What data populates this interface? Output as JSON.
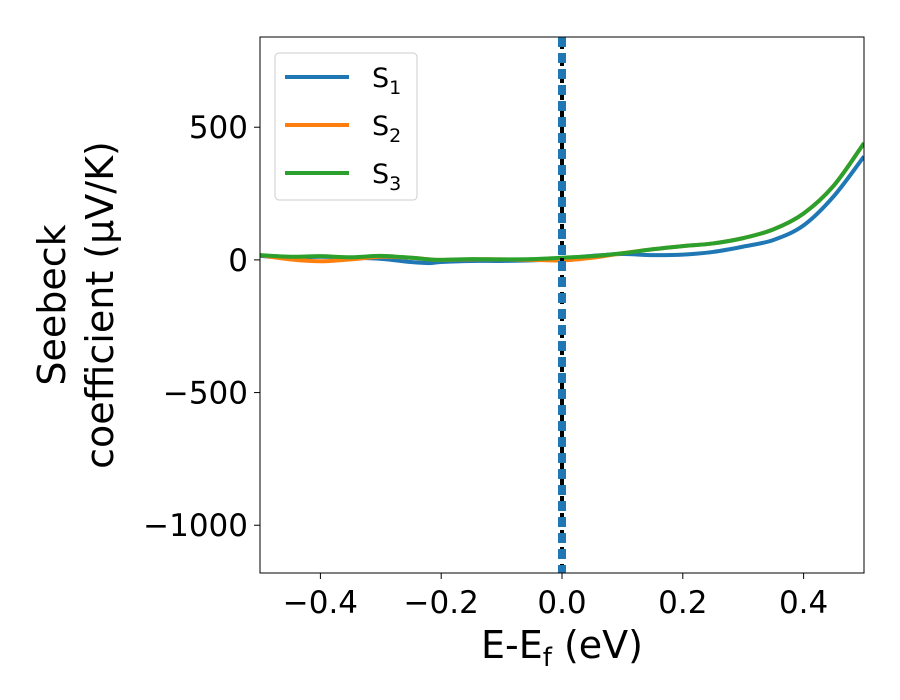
{
  "chart_data": {
    "type": "line",
    "xlabel": "E-E",
    "xlabel_sub": "f",
    "xlabel_unit": " (eV)",
    "ylabel_line1": "Seebeck",
    "ylabel_line2": "coefficient  (μV/K)",
    "xlim": [
      -0.5,
      0.5
    ],
    "ylim": [
      -1180,
      840
    ],
    "xticks": [
      -0.4,
      -0.2,
      0.0,
      0.2,
      0.4
    ],
    "xtick_labels": [
      "−0.4",
      "−0.2",
      "0.0",
      "0.2",
      "0.4"
    ],
    "yticks": [
      500,
      0,
      -500,
      -1000
    ],
    "ytick_labels": [
      "500",
      "0",
      "−500",
      "−1000"
    ],
    "grid": false,
    "legend_placement": "top-left",
    "fermi_level_x": 0.0,
    "series": [
      {
        "name": "S",
        "sub": "1",
        "color": "#1f77b4",
        "x": [
          -0.5,
          -0.45,
          -0.4,
          -0.35,
          -0.3,
          -0.25,
          -0.22,
          -0.2,
          -0.15,
          -0.1,
          -0.05,
          0.0,
          0.05,
          0.1,
          0.15,
          0.2,
          0.25,
          0.3,
          0.35,
          0.4,
          0.45,
          0.5
        ],
        "y": [
          15,
          8,
          12,
          8,
          4,
          -8,
          -12,
          -8,
          -4,
          -4,
          -2,
          5,
          15,
          22,
          18,
          20,
          30,
          50,
          75,
          130,
          240,
          390
        ]
      },
      {
        "name": "S",
        "sub": "2",
        "color": "#ff7f0e",
        "x": [
          -0.5,
          -0.45,
          -0.4,
          -0.35,
          -0.3,
          -0.25,
          -0.22,
          -0.2,
          -0.15,
          -0.1,
          -0.05,
          0.0,
          0.05,
          0.1,
          0.15,
          0.2,
          0.25,
          0.3,
          0.35,
          0.4,
          0.45,
          0.5
        ],
        "y": [
          18,
          2,
          -5,
          2,
          12,
          8,
          2,
          0,
          2,
          2,
          0,
          -2,
          8,
          25,
          40,
          52,
          62,
          82,
          115,
          175,
          280,
          440
        ]
      },
      {
        "name": "S",
        "sub": "3",
        "color": "#2ca02c",
        "x": [
          -0.5,
          -0.45,
          -0.4,
          -0.35,
          -0.3,
          -0.25,
          -0.22,
          -0.2,
          -0.15,
          -0.1,
          -0.05,
          0.0,
          0.05,
          0.1,
          0.15,
          0.2,
          0.25,
          0.3,
          0.35,
          0.4,
          0.45,
          0.5
        ],
        "y": [
          18,
          12,
          14,
          10,
          15,
          8,
          2,
          0,
          3,
          2,
          3,
          8,
          14,
          25,
          40,
          52,
          62,
          82,
          115,
          175,
          280,
          440
        ]
      }
    ]
  }
}
